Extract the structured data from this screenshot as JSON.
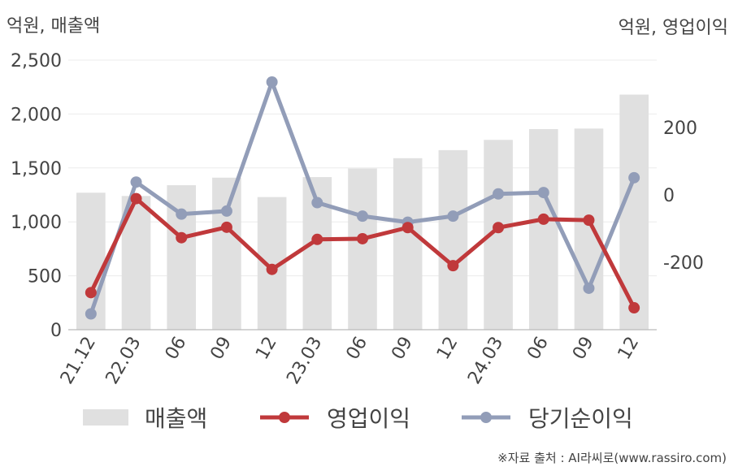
{
  "chart_data": {
    "type": "bar+line",
    "left_axis_unit": "억원, 매출액",
    "right_axis_unit": "억원, 영업이익",
    "categories": [
      "21.12",
      "22.03",
      "06",
      "09",
      "12",
      "23.03",
      "06",
      "09",
      "12",
      "24.03",
      "06",
      "09",
      "12"
    ],
    "left_axis": {
      "ylim": [
        0,
        2500
      ],
      "ticks": [
        "0",
        "500",
        "1,000",
        "1,500",
        "2,000",
        "2,500"
      ]
    },
    "right_axis": {
      "ylim": [
        -400,
        400
      ],
      "ticks": [
        "-200",
        "0",
        "200"
      ]
    },
    "series": [
      {
        "name": "매출액",
        "type": "bar",
        "axis": "left",
        "color": "#e0e0e0",
        "values": [
          1270,
          1240,
          1340,
          1410,
          1230,
          1415,
          1495,
          1590,
          1665,
          1760,
          1860,
          1865,
          2180
        ]
      },
      {
        "name": "영업이익",
        "type": "line",
        "axis": "right",
        "color": "#c0393b",
        "values": [
          -290,
          -11,
          -127,
          -96,
          -221,
          -132,
          -130,
          -97,
          -210,
          -97,
          -72,
          -75,
          -335
        ]
      },
      {
        "name": "당기순이익",
        "type": "line",
        "axis": "right",
        "color": "#929db8",
        "values": [
          -353,
          38,
          -57,
          -48,
          335,
          -23,
          -63,
          -81,
          -63,
          3,
          7,
          -277,
          51
        ]
      }
    ],
    "grid": true,
    "legend_placement": "bottom"
  },
  "legend": [
    {
      "label": "매출액",
      "kind": "bar",
      "color": "#e0e0e0"
    },
    {
      "label": "영업이익",
      "kind": "line",
      "color": "#c0393b"
    },
    {
      "label": "당기순이익",
      "kind": "line",
      "color": "#929db8"
    }
  ],
  "source": "※자료 출처 : AI라씨로(www.rassiro.com)"
}
